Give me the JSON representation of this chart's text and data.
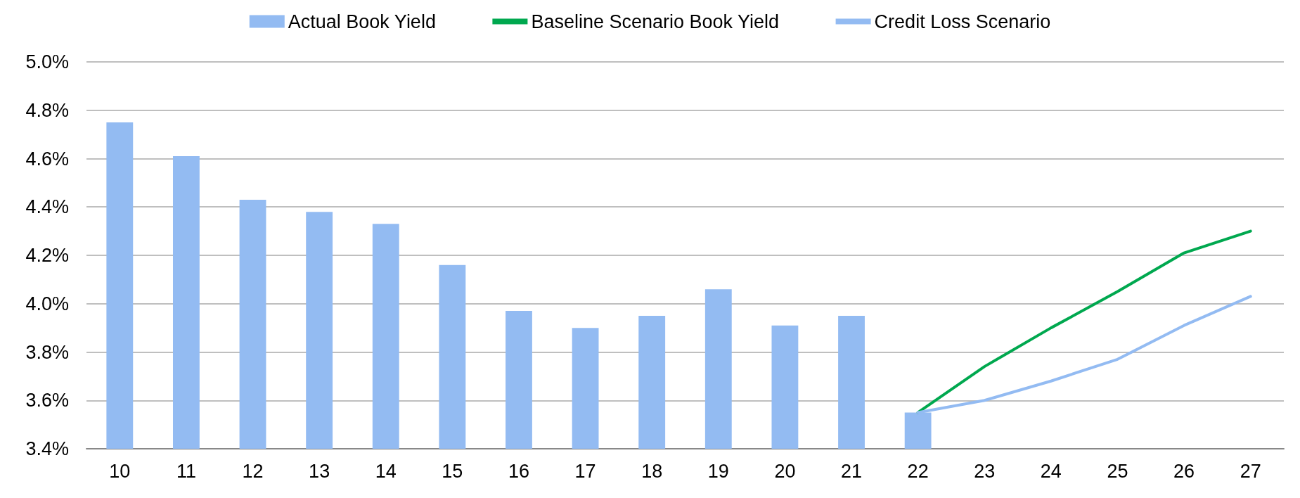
{
  "chart_data": {
    "type": "bar",
    "categories": [
      "10",
      "11",
      "12",
      "13",
      "14",
      "15",
      "16",
      "17",
      "18",
      "19",
      "20",
      "21",
      "22",
      "23",
      "24",
      "25",
      "26",
      "27"
    ],
    "series": [
      {
        "name": "Actual Book Yield",
        "color": "#93bbf2",
        "values": [
          4.75,
          4.61,
          4.43,
          4.38,
          4.33,
          4.16,
          3.97,
          3.9,
          3.95,
          4.06,
          3.91,
          3.95,
          3.55,
          null,
          null,
          null,
          null,
          null
        ]
      },
      {
        "name": "Baseline Scenario Book Yield",
        "type": "line",
        "color": "#00a84f",
        "values": [
          null,
          null,
          null,
          null,
          null,
          null,
          null,
          null,
          null,
          null,
          null,
          null,
          3.55,
          3.74,
          3.9,
          4.05,
          4.21,
          4.3
        ]
      },
      {
        "name": "Credit Loss Scenario",
        "type": "line",
        "color": "#93bbf2",
        "values": [
          null,
          null,
          null,
          null,
          null,
          null,
          null,
          null,
          null,
          null,
          null,
          null,
          3.55,
          3.6,
          3.68,
          3.77,
          3.91,
          4.03
        ]
      }
    ],
    "ylim": [
      3.4,
      5.0
    ],
    "yticks": [
      {
        "value": 3.4,
        "label": "3.4%"
      },
      {
        "value": 3.6,
        "label": "3.6%"
      },
      {
        "value": 3.8,
        "label": "3.8%"
      },
      {
        "value": 4.0,
        "label": "4.0%"
      },
      {
        "value": 4.2,
        "label": "4.2%"
      },
      {
        "value": 4.4,
        "label": "4.4%"
      },
      {
        "value": 4.6,
        "label": "4.6%"
      },
      {
        "value": 4.8,
        "label": "4.8%"
      },
      {
        "value": 5.0,
        "label": "5.0%"
      }
    ],
    "grid": "y",
    "legend": "top",
    "marker": "none",
    "line_style": "solid"
  }
}
